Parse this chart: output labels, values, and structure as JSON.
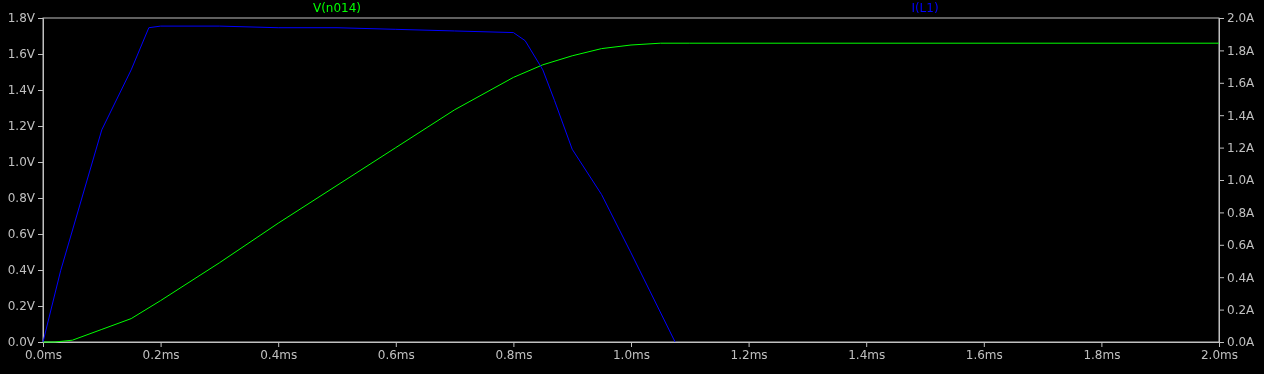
{
  "chart_data": {
    "type": "line",
    "legend": "top",
    "x": [
      0,
      0.02,
      0.05,
      0.1,
      0.15,
      0.2,
      0.3,
      0.4,
      0.5,
      0.6,
      0.7,
      0.8,
      0.85,
      0.9,
      0.95,
      1.0,
      1.05,
      1.1,
      1.5,
      2.0
    ],
    "xlim": [
      0,
      2.0
    ],
    "xticks": [
      {
        "value": 0,
        "label": "0.0ms"
      },
      {
        "value": 0.2,
        "label": "0.2ms"
      },
      {
        "value": 0.4,
        "label": "0.4ms"
      },
      {
        "value": 0.6,
        "label": "0.6ms"
      },
      {
        "value": 0.8,
        "label": "0.8ms"
      },
      {
        "value": 1.0,
        "label": "1.0ms"
      },
      {
        "value": 1.2,
        "label": "1.2ms"
      },
      {
        "value": 1.4,
        "label": "1.4ms"
      },
      {
        "value": 1.6,
        "label": "1.6ms"
      },
      {
        "value": 1.8,
        "label": "1.8ms"
      },
      {
        "value": 2.0,
        "label": "2.0ms"
      }
    ],
    "ylim": [
      0,
      1.8
    ],
    "yticks": [
      {
        "value": 0,
        "label": "0.0V"
      },
      {
        "value": 0.2,
        "label": "0.2V"
      },
      {
        "value": 0.4,
        "label": "0.4V"
      },
      {
        "value": 0.6,
        "label": "0.6V"
      },
      {
        "value": 0.8,
        "label": "0.8V"
      },
      {
        "value": 1.0,
        "label": "1.0V"
      },
      {
        "value": 1.2,
        "label": "1.2V"
      },
      {
        "value": 1.4,
        "label": "1.4V"
      },
      {
        "value": 1.6,
        "label": "1.6V"
      },
      {
        "value": 1.8,
        "label": "1.8V"
      }
    ],
    "y2lim": [
      0,
      2.0
    ],
    "y2ticks": [
      {
        "value": 0,
        "label": "0.0A"
      },
      {
        "value": 0.2,
        "label": "0.2A"
      },
      {
        "value": 0.4,
        "label": "0.4A"
      },
      {
        "value": 0.6,
        "label": "0.6A"
      },
      {
        "value": 0.8,
        "label": "0.8A"
      },
      {
        "value": 1.0,
        "label": "1.0A"
      },
      {
        "value": 1.2,
        "label": "1.2A"
      },
      {
        "value": 1.4,
        "label": "1.4A"
      },
      {
        "value": 1.6,
        "label": "1.6A"
      },
      {
        "value": 1.8,
        "label": "1.8A"
      },
      {
        "value": 2.0,
        "label": "2.0A"
      }
    ],
    "series": [
      {
        "name": "V(n014)",
        "color": "#00ff00",
        "values": [
          0,
          0,
          0.01,
          0.07,
          0.13,
          0.23,
          0.44,
          0.66,
          0.87,
          1.08,
          1.29,
          1.47,
          1.54,
          1.59,
          1.63,
          1.65,
          1.66,
          1.66,
          1.66,
          1.66
        ]
      },
      {
        "name": "I(L1)",
        "color": "#0000ff",
        "axis": "y2",
        "x": [
          0,
          0.03,
          0.1,
          0.15,
          0.18,
          0.2,
          0.3,
          0.4,
          0.5,
          0.6,
          0.7,
          0.8,
          0.82,
          0.85,
          0.87,
          0.9,
          0.95,
          1.0,
          1.075
        ],
        "values": [
          0,
          0.44,
          1.31,
          1.68,
          1.94,
          1.95,
          1.95,
          1.94,
          1.94,
          1.93,
          1.92,
          1.91,
          1.86,
          1.68,
          1.49,
          1.19,
          0.91,
          0.55,
          0
        ]
      }
    ]
  }
}
